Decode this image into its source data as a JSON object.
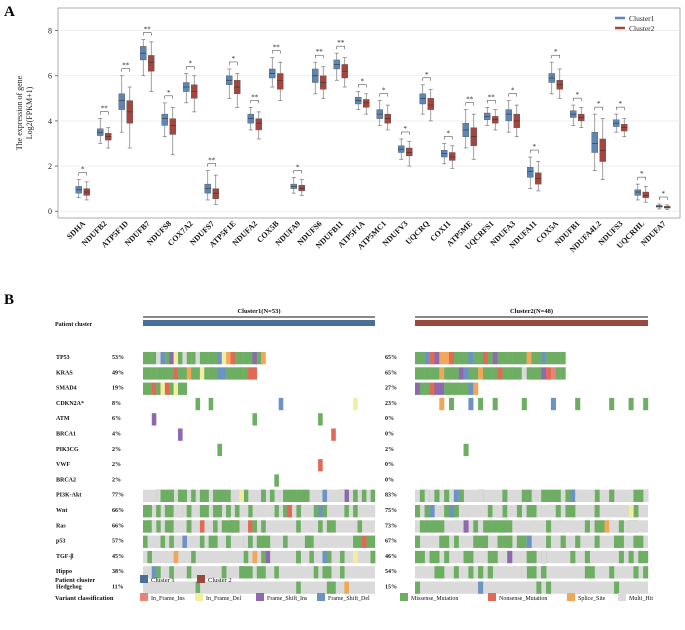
{
  "panels": {
    "a_label": "A",
    "b_label": "B"
  },
  "colors": {
    "cluster1": "#5B86B5",
    "cluster2": "#A5453D",
    "bar1": "#4A6F96",
    "bar2": "#9A4A3C",
    "grid": "#E6E6E6",
    "mut": {
      "In_Frame_Ins": "#E8837A",
      "In_Frame_Del": "#F3EDA2",
      "Frame_Shift_Ins": "#8E69AE",
      "Frame_Shift_Del": "#6D93C5",
      "Missense_Mutation": "#6DAE63",
      "Nonsense_Mutation": "#E06A55",
      "Splice_Site": "#F2A65A",
      "Multi_Hit": "#DADADA"
    }
  },
  "chart_data": [
    {
      "type": "box",
      "title": "",
      "ylabel_line1": "The expression of gene",
      "ylabel_line2": "Log2(FPKM+1)",
      "ylim": [
        -0.3,
        9
      ],
      "yticks": [
        0,
        2,
        4,
        6,
        8
      ],
      "legend": {
        "placement": "top-right",
        "entries": [
          "Cluster1",
          "Cluster2"
        ]
      },
      "genes": [
        {
          "name": "SDHA",
          "sig": "*",
          "c1": [
            0.6,
            0.8,
            0.95,
            1.1,
            1.4
          ],
          "c2": [
            0.5,
            0.7,
            0.85,
            1.0,
            1.3
          ]
        },
        {
          "name": "NDUFB2",
          "sig": "**",
          "c1": [
            3.0,
            3.35,
            3.5,
            3.65,
            4.1
          ],
          "c2": [
            2.8,
            3.15,
            3.3,
            3.45,
            3.7
          ]
        },
        {
          "name": "ATP5F1D",
          "sig": "**",
          "c1": [
            3.5,
            4.5,
            4.9,
            5.2,
            6.0
          ],
          "c2": [
            2.8,
            3.9,
            4.4,
            4.9,
            5.5
          ]
        },
        {
          "name": "NDUFB7",
          "sig": "**",
          "c1": [
            6.0,
            6.7,
            7.0,
            7.3,
            7.6
          ],
          "c2": [
            5.3,
            6.2,
            6.6,
            6.9,
            7.5
          ]
        },
        {
          "name": "NDUFS8",
          "sig": "*",
          "c1": [
            3.3,
            3.8,
            4.1,
            4.3,
            4.8
          ],
          "c2": [
            2.5,
            3.4,
            3.8,
            4.1,
            4.6
          ]
        },
        {
          "name": "COX7A2",
          "sig": "*",
          "c1": [
            4.8,
            5.3,
            5.5,
            5.7,
            6.1
          ],
          "c2": [
            4.4,
            5.0,
            5.3,
            5.6,
            6.0
          ]
        },
        {
          "name": "NDUFS7",
          "sig": "**",
          "c1": [
            0.5,
            0.8,
            1.0,
            1.2,
            1.8
          ],
          "c2": [
            0.3,
            0.55,
            0.8,
            1.0,
            1.6
          ]
        },
        {
          "name": "ATP5F1E",
          "sig": "*",
          "c1": [
            5.0,
            5.6,
            5.8,
            6.0,
            6.3
          ],
          "c2": [
            4.6,
            5.2,
            5.5,
            5.8,
            6.1
          ]
        },
        {
          "name": "NDUFA2",
          "sig": "**",
          "c1": [
            3.6,
            3.9,
            4.1,
            4.3,
            4.6
          ],
          "c2": [
            3.2,
            3.6,
            3.9,
            4.1,
            4.4
          ]
        },
        {
          "name": "COX5B",
          "sig": "**",
          "c1": [
            5.5,
            5.9,
            6.1,
            6.3,
            6.8
          ],
          "c2": [
            4.9,
            5.4,
            5.8,
            6.1,
            6.6
          ]
        },
        {
          "name": "NDUFA9",
          "sig": "*",
          "c1": [
            0.8,
            1.0,
            1.1,
            1.2,
            1.5
          ],
          "c2": [
            0.7,
            0.9,
            1.0,
            1.15,
            1.4
          ]
        },
        {
          "name": "NDUFS6",
          "sig": "**",
          "c1": [
            5.2,
            5.7,
            6.0,
            6.3,
            6.6
          ],
          "c2": [
            5.0,
            5.4,
            5.7,
            6.0,
            6.4
          ]
        },
        {
          "name": "NDUFB11",
          "sig": "**",
          "c1": [
            5.8,
            6.3,
            6.5,
            6.7,
            7.0
          ],
          "c2": [
            5.5,
            5.9,
            6.2,
            6.5,
            6.8
          ]
        },
        {
          "name": "ATP5F1A",
          "sig": "*",
          "c1": [
            4.5,
            4.75,
            4.9,
            5.05,
            5.3
          ],
          "c2": [
            4.3,
            4.6,
            4.8,
            4.95,
            5.2
          ]
        },
        {
          "name": "ATP5MC1",
          "sig": "*",
          "c1": [
            3.8,
            4.1,
            4.3,
            4.5,
            4.9
          ],
          "c2": [
            3.6,
            3.9,
            4.1,
            4.3,
            4.7
          ]
        },
        {
          "name": "NDUFV3",
          "sig": "*",
          "c1": [
            2.3,
            2.6,
            2.75,
            2.9,
            3.2
          ],
          "c2": [
            2.0,
            2.45,
            2.6,
            2.8,
            3.1
          ]
        },
        {
          "name": "UQCRQ",
          "sig": "*",
          "c1": [
            4.3,
            4.75,
            5.0,
            5.2,
            5.6
          ],
          "c2": [
            4.0,
            4.5,
            4.7,
            5.0,
            5.4
          ]
        },
        {
          "name": "COX11",
          "sig": "*",
          "c1": [
            2.1,
            2.4,
            2.55,
            2.7,
            3.0
          ],
          "c2": [
            1.9,
            2.25,
            2.4,
            2.6,
            2.9
          ]
        },
        {
          "name": "ATP5ME",
          "sig": "**",
          "c1": [
            2.8,
            3.3,
            3.6,
            3.9,
            4.5
          ],
          "c2": [
            2.3,
            2.9,
            3.3,
            3.7,
            4.3
          ]
        },
        {
          "name": "UQCRFS1",
          "sig": "**",
          "c1": [
            3.8,
            4.05,
            4.2,
            4.35,
            4.6
          ],
          "c2": [
            3.6,
            3.9,
            4.05,
            4.2,
            4.5
          ]
        },
        {
          "name": "NDUFA3",
          "sig": "*",
          "c1": [
            3.5,
            4.0,
            4.3,
            4.5,
            4.9
          ],
          "c2": [
            3.3,
            3.7,
            4.0,
            4.3,
            4.7
          ]
        },
        {
          "name": "NDUFA11",
          "sig": "*",
          "c1": [
            1.0,
            1.5,
            1.75,
            1.95,
            2.4
          ],
          "c2": [
            0.9,
            1.2,
            1.45,
            1.7,
            2.2
          ]
        },
        {
          "name": "COX5A",
          "sig": "*",
          "c1": [
            5.2,
            5.7,
            5.9,
            6.1,
            6.6
          ],
          "c2": [
            5.0,
            5.4,
            5.6,
            5.8,
            6.3
          ]
        },
        {
          "name": "NDUFB1",
          "sig": "*",
          "c1": [
            3.8,
            4.15,
            4.3,
            4.45,
            4.7
          ],
          "c2": [
            3.7,
            4.0,
            4.15,
            4.3,
            4.6
          ]
        },
        {
          "name": "NDUFA4L2",
          "sig": "*",
          "c1": [
            1.8,
            2.6,
            3.0,
            3.5,
            4.3
          ],
          "c2": [
            1.4,
            2.2,
            2.7,
            3.2,
            4.1
          ]
        },
        {
          "name": "NDUFS3",
          "sig": "*",
          "c1": [
            3.5,
            3.75,
            3.9,
            4.05,
            4.3
          ],
          "c2": [
            3.3,
            3.55,
            3.7,
            3.85,
            4.1
          ]
        },
        {
          "name": "UQCRHL",
          "sig": "*",
          "c1": [
            0.5,
            0.7,
            0.85,
            0.95,
            1.2
          ],
          "c2": [
            0.4,
            0.6,
            0.7,
            0.85,
            1.1
          ]
        },
        {
          "name": "NDUFA7",
          "sig": "*",
          "c1": [
            0.1,
            0.18,
            0.22,
            0.26,
            0.32
          ],
          "c2": [
            0.08,
            0.14,
            0.18,
            0.22,
            0.28
          ]
        }
      ]
    },
    {
      "type": "heatmap",
      "subtype": "oncoplot",
      "patient_cluster_label": "Patient cluster",
      "clusters": [
        {
          "label": "Cluster1(N=53)",
          "n": 53
        },
        {
          "label": "Cluster2(N=48)",
          "n": 48
        }
      ],
      "rows": [
        {
          "name": "TP53",
          "p1": "53%",
          "p2": "65%"
        },
        {
          "name": "KRAS",
          "p1": "49%",
          "p2": "65%"
        },
        {
          "name": "SMAD4",
          "p1": "19%",
          "p2": "27%"
        },
        {
          "name": "CDKN2A*",
          "p1": "8%",
          "p2": "23%"
        },
        {
          "name": "ATM",
          "p1": "6%",
          "p2": "0%"
        },
        {
          "name": "BRCA1",
          "p1": "4%",
          "p2": "0%"
        },
        {
          "name": "PIK3CG",
          "p1": "2%",
          "p2": "2%"
        },
        {
          "name": "VWF",
          "p1": "2%",
          "p2": "0%"
        },
        {
          "name": "BRCA2",
          "p1": "2%",
          "p2": "0%"
        },
        {
          "name": "PI3K-Akt",
          "p1": "77%",
          "p2": "83%"
        },
        {
          "name": "Wnt",
          "p1": "66%",
          "p2": "75%"
        },
        {
          "name": "Ras",
          "p1": "66%",
          "p2": "73%"
        },
        {
          "name": "p53",
          "p1": "57%",
          "p2": "67%"
        },
        {
          "name": "TGF-β",
          "p1": "45%",
          "p2": "46%"
        },
        {
          "name": "Hippo",
          "p1": "38%",
          "p2": "54%"
        },
        {
          "name": "Hedgehog",
          "p1": "11%",
          "p2": "15%"
        }
      ],
      "legend": {
        "patient_cluster_title": "Patient cluster",
        "cluster_entries": [
          "Cluster 1",
          "Cluster 2"
        ],
        "variant_title": "Variant classification",
        "variant_entries": [
          "In_Frame_Ins",
          "In_Frame_Del",
          "Frame_Shift_Ins",
          "Frame_Shift_Del",
          "Missense_Mutation",
          "Nonsense_Mutation",
          "Splice_Site",
          "Multi_Hit"
        ]
      }
    }
  ]
}
